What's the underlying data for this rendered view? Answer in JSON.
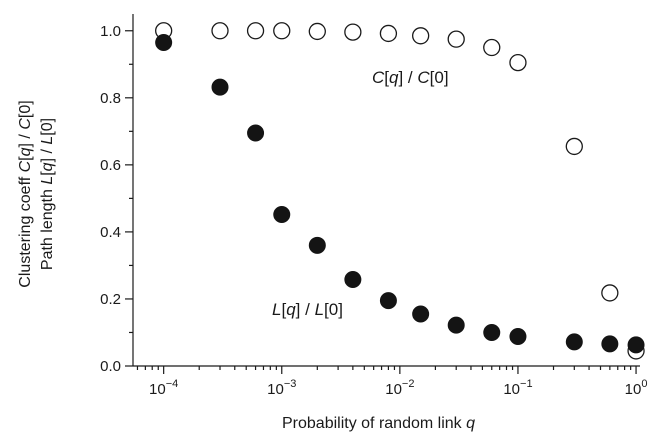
{
  "chart_data": {
    "type": "scatter",
    "xscale": "log",
    "xlim": [
      5.5e-05,
      1.08
    ],
    "ylim": [
      0,
      1.05
    ],
    "xlabel": {
      "prefix": "Probability of random link ",
      "var": "q"
    },
    "ylabel_lines": [
      [
        {
          "t": "Clustering coeff ",
          "i": false
        },
        {
          "t": "C",
          "i": true
        },
        {
          "t": "[",
          "i": false
        },
        {
          "t": "q",
          "i": true
        },
        {
          "t": "] / ",
          "i": false
        },
        {
          "t": "C",
          "i": true
        },
        {
          "t": "[0]",
          "i": false
        }
      ],
      [
        {
          "t": "Path length ",
          "i": false
        },
        {
          "t": "L",
          "i": true
        },
        {
          "t": "[",
          "i": false
        },
        {
          "t": "q",
          "i": true
        },
        {
          "t": "] / ",
          "i": false
        },
        {
          "t": "L",
          "i": true
        },
        {
          "t": "[0]",
          "i": false
        }
      ]
    ],
    "y_ticks": [
      0.0,
      0.2,
      0.4,
      0.6,
      0.8,
      1.0
    ],
    "y_tick_labels": [
      "0.0",
      "0.2",
      "0.4",
      "0.6",
      "0.8",
      "1.0"
    ],
    "x_ticks": [
      {
        "value": 0.0001,
        "base": "10",
        "exp": "−4"
      },
      {
        "value": 0.001,
        "base": "10",
        "exp": "−3"
      },
      {
        "value": 0.01,
        "base": "10",
        "exp": "−2"
      },
      {
        "value": 0.1,
        "base": "10",
        "exp": "−1"
      },
      {
        "value": 1,
        "base": "10",
        "exp": "0"
      }
    ],
    "series": [
      {
        "marker": "open",
        "x": [
          0.0001,
          0.0003,
          0.0006,
          0.001,
          0.002,
          0.004,
          0.008,
          0.015,
          0.03,
          0.06,
          0.1,
          0.3,
          0.6,
          1.0
        ],
        "y": [
          1.0,
          1.0,
          1.0,
          1.0,
          0.998,
          0.996,
          0.992,
          0.985,
          0.975,
          0.95,
          0.905,
          0.655,
          0.218,
          0.045
        ]
      },
      {
        "marker": "filled",
        "x": [
          0.0001,
          0.0003,
          0.0006,
          0.001,
          0.002,
          0.004,
          0.008,
          0.015,
          0.03,
          0.06,
          0.1,
          0.3,
          0.6,
          1.0
        ],
        "y": [
          0.965,
          0.832,
          0.695,
          0.452,
          0.36,
          0.258,
          0.195,
          0.155,
          0.122,
          0.1,
          0.088,
          0.072,
          0.066,
          0.063
        ]
      }
    ],
    "annotations": [
      {
        "series_index": 0,
        "parts": [
          {
            "t": "C",
            "i": true
          },
          {
            "t": "[",
            "i": false
          },
          {
            "t": "q",
            "i": true
          },
          {
            "t": "] / ",
            "i": false
          },
          {
            "t": "C",
            "i": true
          },
          {
            "t": "[0]",
            "i": false
          }
        ]
      },
      {
        "series_index": 1,
        "parts": [
          {
            "t": "L",
            "i": true
          },
          {
            "t": "[",
            "i": false
          },
          {
            "t": "q",
            "i": true
          },
          {
            "t": "] / ",
            "i": false
          },
          {
            "t": "L",
            "i": true
          },
          {
            "t": "[0]",
            "i": false
          }
        ]
      }
    ],
    "grid": false,
    "legend": "none"
  }
}
